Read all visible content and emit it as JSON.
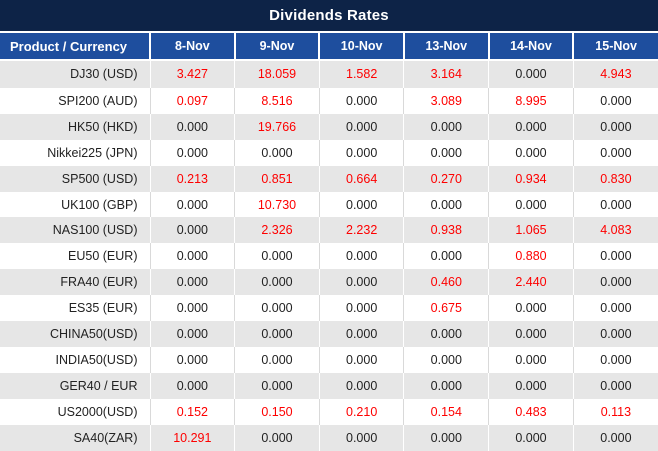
{
  "chart_data": {
    "type": "table",
    "title": "Dividends Rates",
    "product_header": "Product / Currency",
    "date_columns": [
      "8-Nov",
      "9-Nov",
      "10-Nov",
      "13-Nov",
      "14-Nov",
      "15-Nov"
    ],
    "rows": [
      {
        "product": "DJ30 (USD)",
        "values": [
          "3.427",
          "18.059",
          "1.582",
          "3.164",
          "0.000",
          "4.943"
        ]
      },
      {
        "product": "SPI200 (AUD)",
        "values": [
          "0.097",
          "8.516",
          "0.000",
          "3.089",
          "8.995",
          "0.000"
        ]
      },
      {
        "product": "HK50 (HKD)",
        "values": [
          "0.000",
          "19.766",
          "0.000",
          "0.000",
          "0.000",
          "0.000"
        ]
      },
      {
        "product": "Nikkei225 (JPN)",
        "values": [
          "0.000",
          "0.000",
          "0.000",
          "0.000",
          "0.000",
          "0.000"
        ]
      },
      {
        "product": "SP500 (USD)",
        "values": [
          "0.213",
          "0.851",
          "0.664",
          "0.270",
          "0.934",
          "0.830"
        ]
      },
      {
        "product": "UK100 (GBP)",
        "values": [
          "0.000",
          "10.730",
          "0.000",
          "0.000",
          "0.000",
          "0.000"
        ]
      },
      {
        "product": "NAS100 (USD)",
        "values": [
          "0.000",
          "2.326",
          "2.232",
          "0.938",
          "1.065",
          "4.083"
        ]
      },
      {
        "product": "EU50 (EUR)",
        "values": [
          "0.000",
          "0.000",
          "0.000",
          "0.000",
          "0.880",
          "0.000"
        ]
      },
      {
        "product": "FRA40 (EUR)",
        "values": [
          "0.000",
          "0.000",
          "0.000",
          "0.460",
          "2.440",
          "0.000"
        ]
      },
      {
        "product": "ES35 (EUR)",
        "values": [
          "0.000",
          "0.000",
          "0.000",
          "0.675",
          "0.000",
          "0.000"
        ]
      },
      {
        "product": "CHINA50(USD)",
        "values": [
          "0.000",
          "0.000",
          "0.000",
          "0.000",
          "0.000",
          "0.000"
        ]
      },
      {
        "product": "INDIA50(USD)",
        "values": [
          "0.000",
          "0.000",
          "0.000",
          "0.000",
          "0.000",
          "0.000"
        ]
      },
      {
        "product": "GER40 / EUR",
        "values": [
          "0.000",
          "0.000",
          "0.000",
          "0.000",
          "0.000",
          "0.000"
        ]
      },
      {
        "product": "US2000(USD)",
        "values": [
          "0.152",
          "0.150",
          "0.210",
          "0.154",
          "0.483",
          "0.113"
        ]
      },
      {
        "product": "SA40(ZAR)",
        "values": [
          "10.291",
          "0.000",
          "0.000",
          "0.000",
          "0.000",
          "0.000"
        ]
      }
    ],
    "layout": {
      "alternating_rows": true,
      "first_row_shade": "gray",
      "value_color_rule": "red when non-zero, black when zero"
    }
  },
  "colors": {
    "title_bar_bg": "#0d2347",
    "header_bg": "#1e4e9e",
    "header_text": "#ffffff",
    "row_gray_bg": "#e6e6e6",
    "row_white_bg": "#ffffff",
    "value_nonzero": "#fe0000",
    "value_zero": "#222222"
  }
}
